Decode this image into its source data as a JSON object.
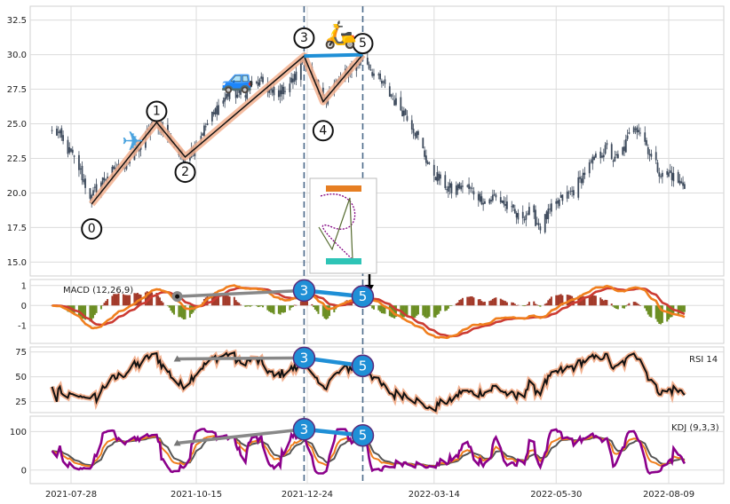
{
  "chart_data": {
    "type": "candlestick",
    "x_ticks": [
      "2021-07-28",
      "2021-10-15",
      "2021-12-24",
      "2022-03-14",
      "2022-05-30",
      "2022-08-09"
    ],
    "x_range": [
      "2021-07-16",
      "2022-08-20"
    ],
    "price_panel": {
      "ylim": [
        14,
        33.5
      ],
      "yticks": [
        "15.0",
        "17.5",
        "20.0",
        "22.5",
        "25.0",
        "27.5",
        "30.0",
        "32.5"
      ],
      "close_anchors": [
        [
          "2021-07-16",
          24.4
        ],
        [
          "2021-07-20",
          24.3
        ],
        [
          "2021-07-23",
          23.6
        ],
        [
          "2021-07-28",
          22.8
        ],
        [
          "2021-08-02",
          21.8
        ],
        [
          "2021-08-06",
          20.6
        ],
        [
          "2021-08-10",
          19.6
        ],
        [
          "2021-08-13",
          20.4
        ],
        [
          "2021-08-20",
          21.3
        ],
        [
          "2021-08-27",
          21.8
        ],
        [
          "2021-09-03",
          22.4
        ],
        [
          "2021-09-10",
          23.4
        ],
        [
          "2021-09-15",
          24.6
        ],
        [
          "2021-09-20",
          25.1
        ],
        [
          "2021-09-27",
          24.2
        ],
        [
          "2021-10-04",
          22.8
        ],
        [
          "2021-10-08",
          22.5
        ],
        [
          "2021-10-15",
          23.6
        ],
        [
          "2021-10-22",
          25.0
        ],
        [
          "2021-10-29",
          26.3
        ],
        [
          "2021-11-05",
          27.3
        ],
        [
          "2021-11-12",
          27.0
        ],
        [
          "2021-11-19",
          27.8
        ],
        [
          "2021-11-26",
          28.0
        ],
        [
          "2021-12-03",
          27.0
        ],
        [
          "2021-12-10",
          27.6
        ],
        [
          "2021-12-17",
          28.4
        ],
        [
          "2021-12-22",
          29.9
        ],
        [
          "2021-12-28",
          28.0
        ],
        [
          "2022-01-03",
          26.7
        ],
        [
          "2022-01-10",
          27.8
        ],
        [
          "2022-01-17",
          28.6
        ],
        [
          "2022-01-24",
          29.3
        ],
        [
          "2022-01-28",
          30.0
        ],
        [
          "2022-02-04",
          28.6
        ],
        [
          "2022-02-11",
          27.6
        ],
        [
          "2022-02-18",
          26.5
        ],
        [
          "2022-02-25",
          25.6
        ],
        [
          "2022-03-04",
          24.0
        ],
        [
          "2022-03-11",
          21.8
        ],
        [
          "2022-03-18",
          20.9
        ],
        [
          "2022-03-25",
          20.2
        ],
        [
          "2022-04-01",
          20.5
        ],
        [
          "2022-04-08",
          20.1
        ],
        [
          "2022-04-15",
          19.4
        ],
        [
          "2022-04-22",
          19.8
        ],
        [
          "2022-04-29",
          19.0
        ],
        [
          "2022-05-06",
          18.2
        ],
        [
          "2022-05-13",
          18.6
        ],
        [
          "2022-05-20",
          17.6
        ],
        [
          "2022-05-27",
          18.8
        ],
        [
          "2022-06-03",
          19.6
        ],
        [
          "2022-06-10",
          20.2
        ],
        [
          "2022-06-17",
          21.5
        ],
        [
          "2022-06-24",
          22.5
        ],
        [
          "2022-07-01",
          23.2
        ],
        [
          "2022-07-06",
          22.3
        ],
        [
          "2022-07-12",
          23.3
        ],
        [
          "2022-07-18",
          25.0
        ],
        [
          "2022-07-22",
          24.5
        ],
        [
          "2022-07-27",
          23.2
        ],
        [
          "2022-08-01",
          22.0
        ],
        [
          "2022-08-05",
          21.2
        ],
        [
          "2022-08-10",
          21.4
        ],
        [
          "2022-08-15",
          20.8
        ],
        [
          "2022-08-20",
          20.6
        ]
      ],
      "wave_points": [
        {
          "label": "0",
          "date": "2021-08-10",
          "price": 19.2
        },
        {
          "label": "1",
          "date": "2021-09-20",
          "price": 25.1
        },
        {
          "label": "2",
          "date": "2021-10-08",
          "price": 22.6
        },
        {
          "label": "3",
          "date": "2021-12-22",
          "price": 29.9
        },
        {
          "label": "4",
          "date": "2022-01-03",
          "price": 26.6
        },
        {
          "label": "5",
          "date": "2022-01-28",
          "price": 30.0
        }
      ],
      "marker_labels": [
        {
          "label": "0",
          "date": "2021-08-10",
          "price": 17.4
        },
        {
          "label": "1",
          "date": "2021-09-20",
          "price": 25.9
        },
        {
          "label": "2",
          "date": "2021-10-08",
          "price": 21.5
        },
        {
          "label": "3",
          "date": "2021-12-22",
          "price": 31.2
        },
        {
          "label": "4",
          "date": "2022-01-03",
          "price": 24.5
        },
        {
          "label": "5",
          "date": "2022-01-28",
          "price": 30.8
        }
      ],
      "vlines": [
        "2021-12-22",
        "2022-01-28"
      ],
      "icons": [
        {
          "name": "airplane",
          "glyph": "✈",
          "date": "2021-09-05",
          "price": 23.7
        },
        {
          "name": "car",
          "glyph": "🚙",
          "date": "2021-11-10",
          "price": 28.2
        },
        {
          "name": "scooter",
          "glyph": "🛵",
          "date": "2022-01-14",
          "price": 31.4
        }
      ]
    },
    "macd_panel": {
      "label": "MACD (12,26,9)",
      "ylim": [
        -1.9,
        1.3
      ],
      "yticks": [
        "-1",
        "0",
        "1"
      ]
    },
    "rsi_panel": {
      "label": "RSI 14",
      "ylim": [
        14,
        80
      ],
      "yticks": [
        "25",
        "50",
        "75"
      ]
    },
    "kdj_panel": {
      "label": "KDJ (9,3,3)",
      "ylim": [
        -35,
        140
      ],
      "yticks": [
        "0",
        "100"
      ]
    },
    "divergence": {
      "macd": [
        {
          "date": "2021-10-03",
          "value": 0.45
        },
        {
          "date": "2021-12-22",
          "value": 0.75
        },
        {
          "date": "2022-01-28",
          "value": 0.45
        }
      ],
      "rsi": [
        {
          "date": "2021-10-03",
          "value": 68
        },
        {
          "date": "2021-12-22",
          "value": 69
        },
        {
          "date": "2022-01-28",
          "value": 61
        }
      ],
      "kdj": [
        {
          "date": "2021-10-03",
          "value": 70
        },
        {
          "date": "2021-12-22",
          "value": 106
        },
        {
          "date": "2022-01-28",
          "value": 90
        }
      ]
    },
    "colors": {
      "candle": "#3d4a5c",
      "wave": "#111111",
      "wave_glow": "#f2b08f",
      "macd_line": "#f07f1e",
      "signal_line": "#cc3b32",
      "hist_pos": "#a33a2a",
      "hist_neg": "#6b8e23",
      "rsi": "#111111",
      "rsi_glow": "#f2b08f",
      "kdj_k": "#f07f1e",
      "kdj_d": "#555555",
      "kdj_j": "#8b008b",
      "div_gray": "#888888",
      "div_blue": "#1f8fd6",
      "vline": "#4c6a8a"
    }
  }
}
